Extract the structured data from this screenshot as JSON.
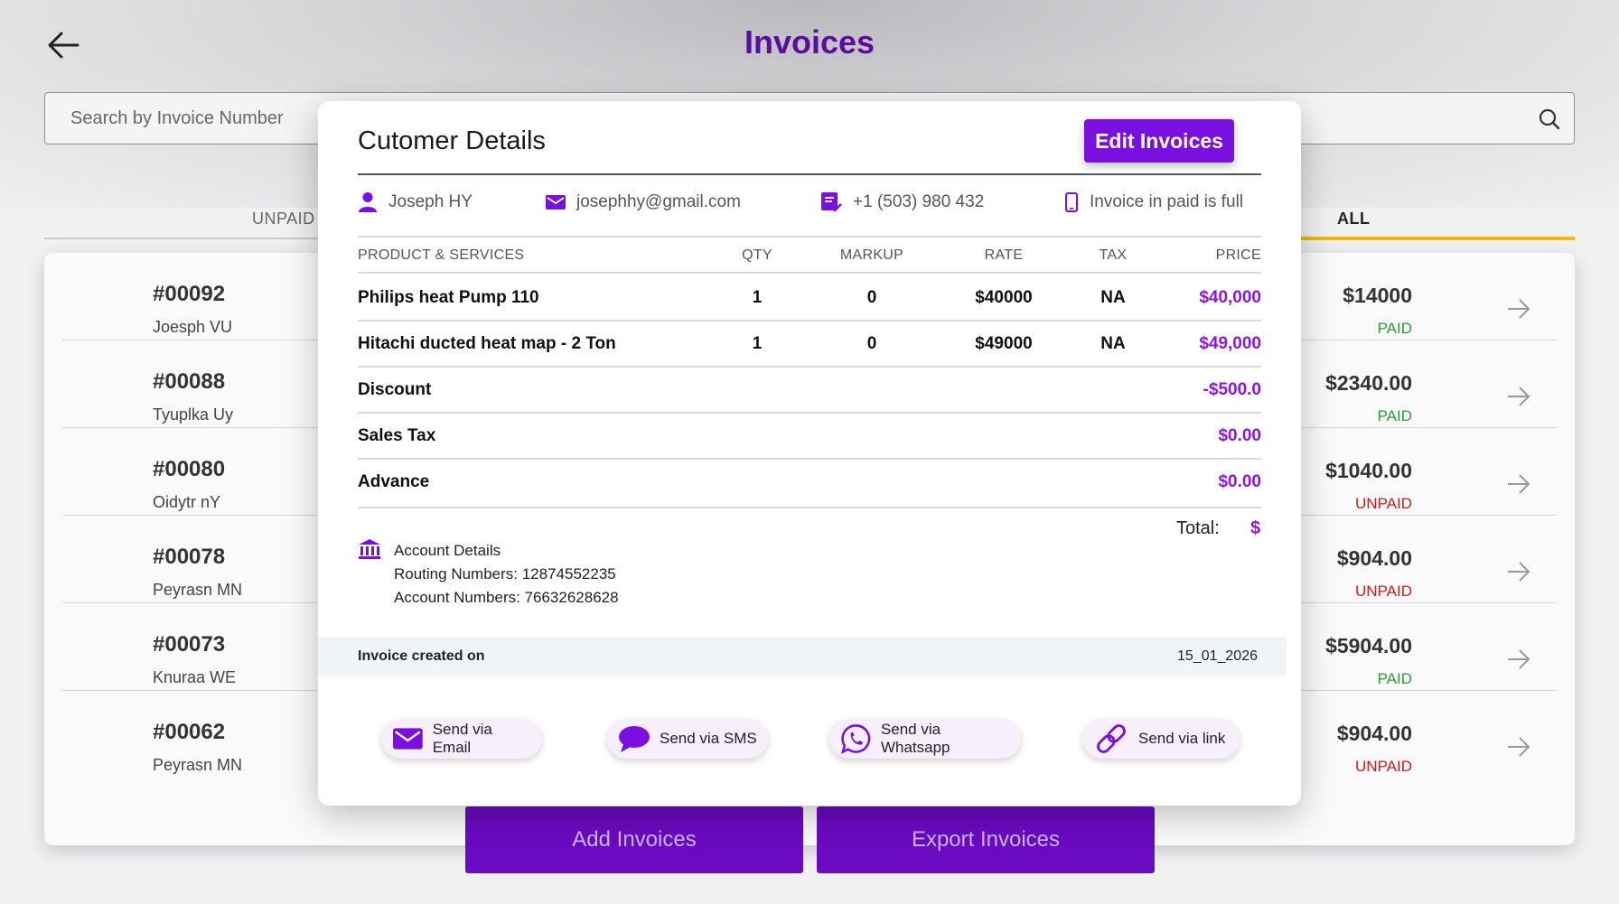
{
  "colors": {
    "brand": "#7a10e0",
    "title": "#5b0e9e",
    "paid": "#2f9a38",
    "unpaid": "#c41f1f",
    "tab_accent": "#f0b90b"
  },
  "page": {
    "title": "Invoices",
    "back_icon": "arrow-left-icon"
  },
  "search": {
    "placeholder": "Search by Invoice Number",
    "icon": "search-icon"
  },
  "tabs": [
    {
      "label": "UNPAID"
    },
    {
      "label": "ALL"
    }
  ],
  "invoices": [
    {
      "number": "#00092",
      "name": "Joesph VU",
      "amount": "$14000",
      "status": "PAID"
    },
    {
      "number": "#00088",
      "name": "Tyuplka Uy",
      "amount": "$2340.00",
      "status": "PAID"
    },
    {
      "number": "#00080",
      "name": "Oidytr nY",
      "amount": "$1040.00",
      "status": "UNPAID"
    },
    {
      "number": "#00078",
      "name": "Peyrasn MN",
      "amount": "$904.00",
      "status": "UNPAID"
    },
    {
      "number": "#00073",
      "name": "Knuraa WE",
      "amount": "$5904.00",
      "status": "PAID"
    },
    {
      "number": "#00062",
      "name": "Peyrasn MN",
      "amount": "$904.00",
      "status": "UNPAID"
    }
  ],
  "actions": {
    "add": "Add Invoices",
    "export": "Export Invoices"
  },
  "modal": {
    "title": "Cutomer Details",
    "edit_label": "Edit Invoices",
    "customer": {
      "name": "Joseph HY",
      "email": "josephhy@gmail.com",
      "phone": "+1 (503) 980 432",
      "note": "Invoice in paid is full"
    },
    "table": {
      "headers": [
        "PRODUCT & SERVICES",
        "QTY",
        "MARKUP",
        "RATE",
        "TAX",
        "PRICE"
      ],
      "rows": [
        {
          "product": "Philips heat Pump 110",
          "qty": "1",
          "markup": "0",
          "rate": "$40000",
          "tax": "NA",
          "price": "$40,000"
        },
        {
          "product": "Hitachi ducted heat map - 2 Ton",
          "qty": "1",
          "markup": "0",
          "rate": "$49000",
          "tax": "NA",
          "price": "$49,000"
        }
      ]
    },
    "summary": [
      {
        "label": "Discount",
        "value": "-$500.0"
      },
      {
        "label": "Sales Tax",
        "value": "$0.00"
      },
      {
        "label": "Advance",
        "value": "$0.00"
      }
    ],
    "total_label": "Total:",
    "total_value": "$",
    "account": {
      "title": "Account Details",
      "routing": "Routing Numbers: 12874552235",
      "account_no": "Account Numbers: 76632628628"
    },
    "created_label": "Invoice created on",
    "created_value": "15_01_2026",
    "send": [
      {
        "label": "Send via Email",
        "icon": "envelope-icon"
      },
      {
        "label": "Send via SMS",
        "icon": "chat-bubble-icon"
      },
      {
        "label": "Send via Whatsapp",
        "icon": "whatsapp-icon"
      },
      {
        "label": "Send via link",
        "icon": "link-icon"
      }
    ]
  }
}
